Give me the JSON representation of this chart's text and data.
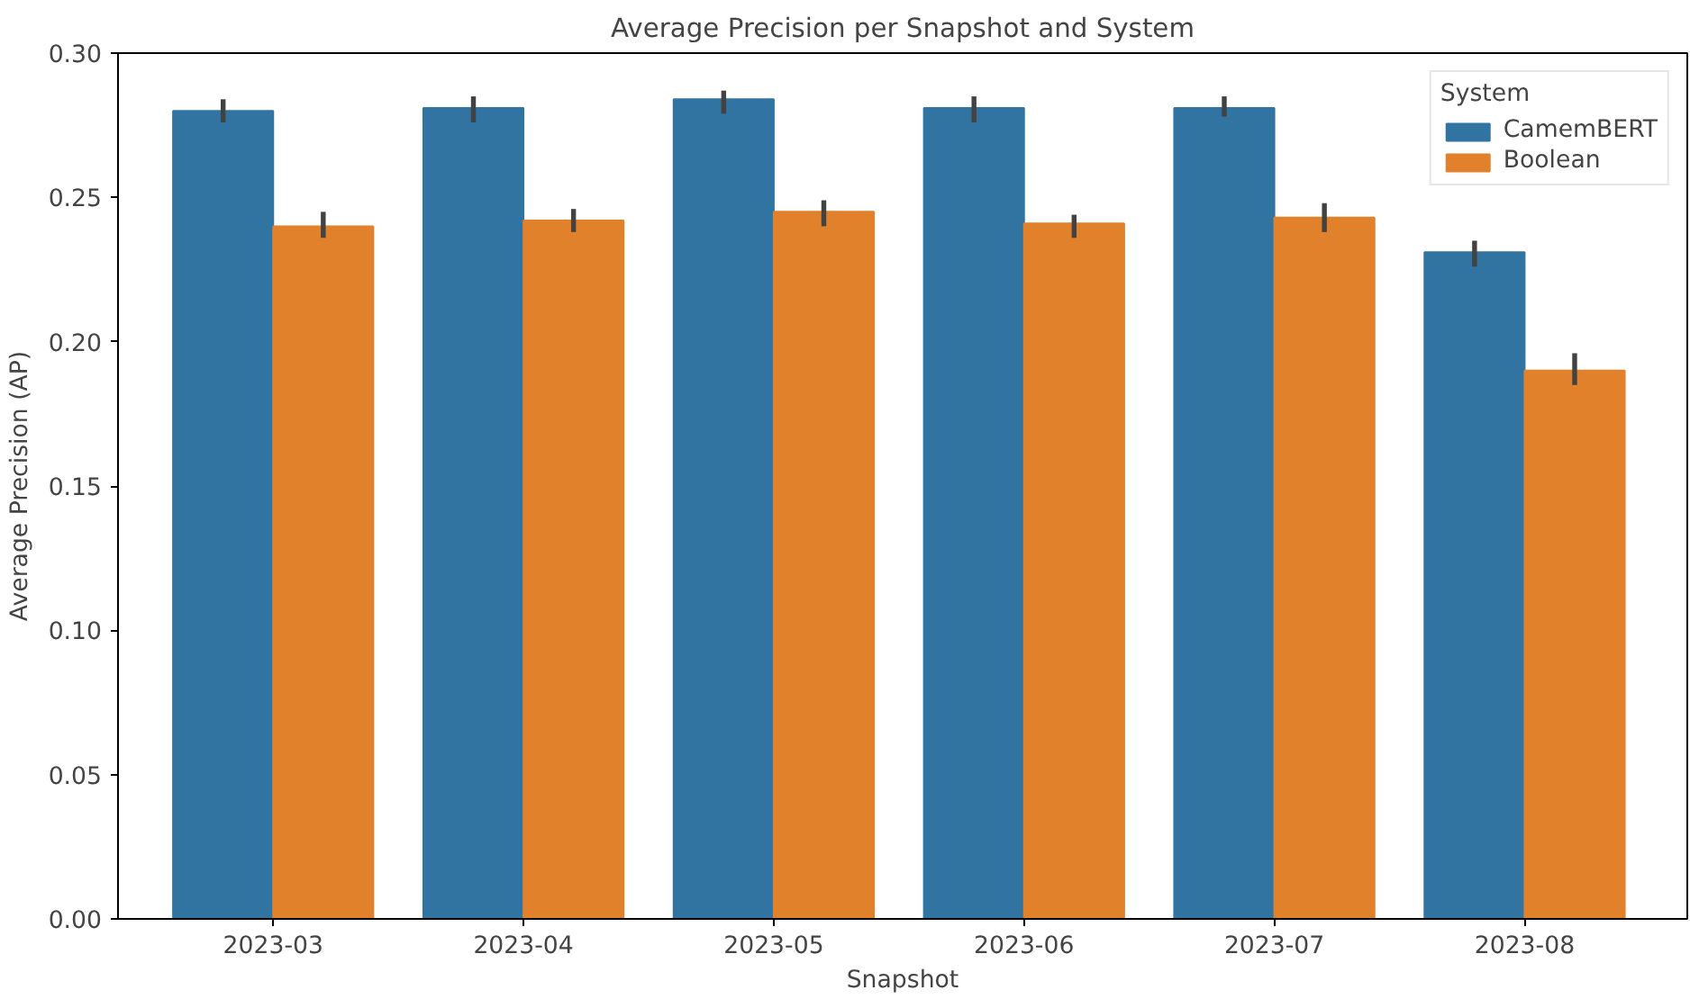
{
  "chart_data": {
    "type": "bar",
    "title": "Average Precision per Snapshot and System",
    "xlabel": "Snapshot",
    "ylabel": "Average Precision (AP)",
    "legend_title": "System",
    "legend": "top right",
    "grid": false,
    "categories": [
      "2023-03",
      "2023-04",
      "2023-05",
      "2023-06",
      "2023-07",
      "2023-08"
    ],
    "ylim": [
      0,
      0.3
    ],
    "yticks": [
      {
        "value": 0,
        "label": "0.00"
      },
      {
        "value": 0.05,
        "label": "0.05"
      },
      {
        "value": 0.1,
        "label": "0.10"
      },
      {
        "value": 0.15,
        "label": "0.15"
      },
      {
        "value": 0.2,
        "label": "0.20"
      },
      {
        "value": 0.25,
        "label": "0.25"
      },
      {
        "value": 0.3,
        "label": "0.30"
      }
    ],
    "series": [
      {
        "name": "CamemBERT",
        "color": "#3274a1",
        "values": [
          0.28,
          0.281,
          0.284,
          0.281,
          0.281,
          0.231
        ],
        "errors": [
          [
            0.276,
            0.284
          ],
          [
            0.276,
            0.285
          ],
          [
            0.279,
            0.287
          ],
          [
            0.276,
            0.285
          ],
          [
            0.278,
            0.285
          ],
          [
            0.226,
            0.235
          ]
        ]
      },
      {
        "name": "Boolean",
        "color": "#e1812c",
        "values": [
          0.24,
          0.242,
          0.245,
          0.241,
          0.243,
          0.19
        ],
        "errors": [
          [
            0.236,
            0.245
          ],
          [
            0.238,
            0.246
          ],
          [
            0.24,
            0.249
          ],
          [
            0.236,
            0.244
          ],
          [
            0.238,
            0.248
          ],
          [
            0.185,
            0.196
          ]
        ]
      }
    ]
  }
}
